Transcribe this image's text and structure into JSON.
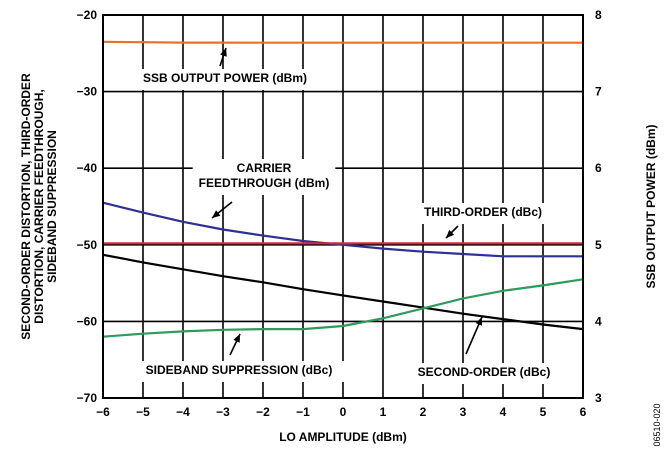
{
  "chart_data": {
    "type": "line",
    "x": [
      -6,
      -5,
      -4,
      -3,
      -2,
      -1,
      0,
      1,
      2,
      3,
      4,
      5,
      6
    ],
    "xlabel": "LO AMPLITUDE (dBm)",
    "xlim": [
      -6,
      6
    ],
    "ylabel_left": [
      "SECOND-ORDER DISTORTION, THIRD-ORDER",
      "DISTORTION, CARRIER FEEDTHROUGH,",
      "SIDEBAND SUPPRESSION"
    ],
    "ylim_left": [
      -70,
      -20
    ],
    "ylabel_right": "SSB OUTPUT POWER (dBm)",
    "ylim_right": [
      3,
      8
    ],
    "left_ticks": [
      -70,
      -60,
      -50,
      -40,
      -30,
      -20
    ],
    "right_ticks": [
      3,
      4,
      5,
      6,
      7,
      8
    ],
    "x_ticks": [
      -6,
      -5,
      -4,
      -3,
      -2,
      -1,
      0,
      1,
      2,
      3,
      4,
      5,
      6
    ],
    "grid": true,
    "figure_code": "06510-020",
    "series": [
      {
        "name": "SSB OUTPUT POWER (dBm)",
        "axis": "right",
        "color": "#e8702a",
        "values": [
          7.65,
          7.645,
          7.64,
          7.64,
          7.638,
          7.638,
          7.638,
          7.638,
          7.638,
          7.638,
          7.638,
          7.638,
          7.638
        ]
      },
      {
        "name": "CARRIER FEEDTHROUGH (dBm)",
        "axis": "left",
        "color": "#2e3192",
        "values": [
          -44.5,
          -45.8,
          -47.0,
          -48.0,
          -48.8,
          -49.5,
          -50.0,
          -50.5,
          -50.9,
          -51.2,
          -51.5,
          -51.5,
          -51.5
        ]
      },
      {
        "name": "THIRD-ORDER (dBc)",
        "axis": "left",
        "color": "#cc2d3b",
        "values": [
          -49.8,
          -49.8,
          -49.8,
          -49.8,
          -49.8,
          -49.8,
          -49.8,
          -49.8,
          -49.8,
          -49.8,
          -49.8,
          -49.8,
          -49.8
        ]
      },
      {
        "name": "SECOND-ORDER (dBc)",
        "axis": "left",
        "color": "#000000",
        "values": [
          -51.3,
          -52.3,
          -53.2,
          -54.1,
          -54.9,
          -55.8,
          -56.6,
          -57.4,
          -58.2,
          -59.0,
          -59.7,
          -60.4,
          -61.0
        ]
      },
      {
        "name": "SIDEBAND SUPPRESSION (dBc)",
        "axis": "left",
        "color": "#2e9a5c",
        "values": [
          -62.0,
          -61.6,
          -61.3,
          -61.1,
          -61.0,
          -61.0,
          -60.6,
          -59.6,
          -58.3,
          -57.0,
          -56.0,
          -55.3,
          -54.5
        ]
      }
    ],
    "annotations": [
      {
        "lines": [
          "SSB OUTPUT POWER (dBm)"
        ],
        "series": 0
      },
      {
        "lines": [
          "CARRIER",
          "FEEDTHROUGH (dBm)"
        ],
        "series": 1
      },
      {
        "lines": [
          "THIRD-ORDER (dBc)"
        ],
        "series": 2
      },
      {
        "lines": [
          "SECOND-ORDER (dBc)"
        ],
        "series": 3
      },
      {
        "lines": [
          "SIDEBAND SUPPRESSION (dBc)"
        ],
        "series": 4
      }
    ]
  }
}
